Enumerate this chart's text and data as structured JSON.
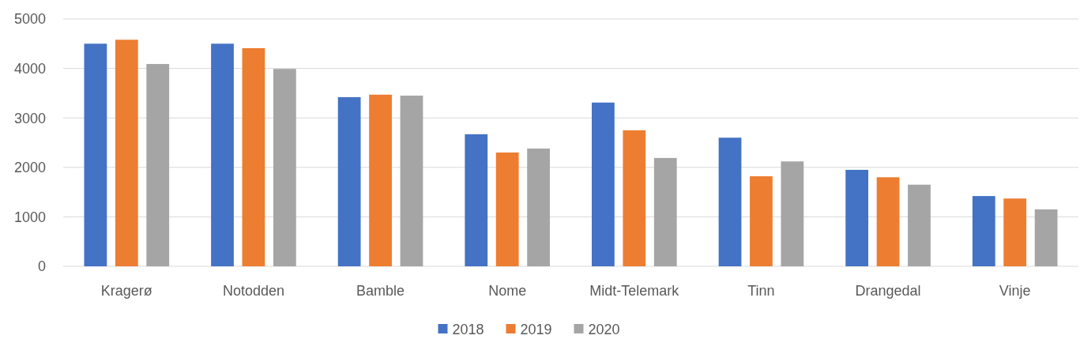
{
  "chart_data": {
    "type": "bar",
    "categories": [
      "Kragerø",
      "Notodden",
      "Bamble",
      "Nome",
      "Midt-Telemark",
      "Tinn",
      "Drangedal",
      "Vinje"
    ],
    "series": [
      {
        "name": "2018",
        "color": "#4472c4",
        "values": [
          4500,
          4500,
          3420,
          2670,
          3310,
          2600,
          1950,
          1420
        ]
      },
      {
        "name": "2019",
        "color": "#ed7d31",
        "values": [
          4580,
          4410,
          3470,
          2300,
          2750,
          1820,
          1800,
          1370
        ]
      },
      {
        "name": "2020",
        "color": "#a5a5a5",
        "values": [
          4090,
          3990,
          3450,
          2380,
          2190,
          2120,
          1650,
          1150
        ]
      }
    ],
    "ylim": [
      0,
      5000
    ],
    "yticks": [
      0,
      1000,
      2000,
      3000,
      4000,
      5000
    ],
    "grid": "y",
    "legend": "bottom"
  }
}
